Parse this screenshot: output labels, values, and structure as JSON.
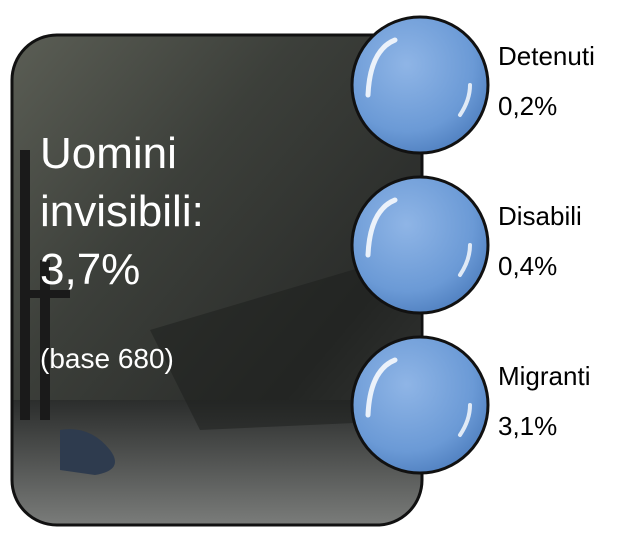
{
  "panel": {
    "title_lines": [
      "Uomini",
      "invisibili:",
      "3,7%"
    ],
    "base": "(base 680)"
  },
  "items": [
    {
      "label": "Detenuti",
      "value": "0,2%"
    },
    {
      "label": "Disabili",
      "value": "0,4%"
    },
    {
      "label": "Migranti",
      "value": "3,1%"
    }
  ]
}
